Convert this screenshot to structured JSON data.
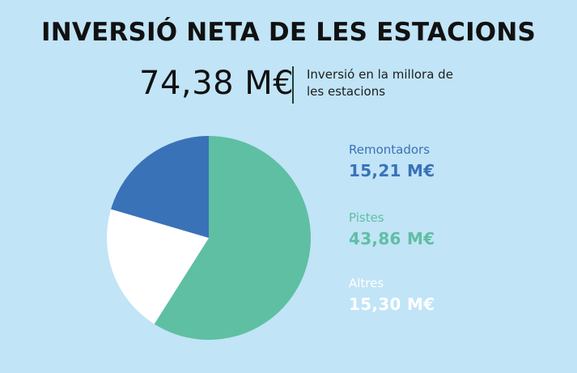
{
  "header": {
    "title": "INVERSIÓ NETA DE LES ESTACIONS",
    "total": "74,38 M€",
    "subtitle": "Inversió en la millora de les estacions"
  },
  "colors": {
    "background": "#c1e4f7",
    "remuntadors": "#3a72b8",
    "pistes": "#5fbfa3",
    "altres": "#ffffff"
  },
  "chart_data": {
    "type": "pie",
    "title": "INVERSIÓ NETA DE LES ESTACIONS",
    "unit": "M€",
    "total": 74.38,
    "slices": [
      {
        "name": "Remontadors",
        "value": 15.21,
        "label": "15,21 M€",
        "color": "#3a72b8"
      },
      {
        "name": "Pistes",
        "value": 43.86,
        "label": "43,86 M€",
        "color": "#5fbfa3"
      },
      {
        "name": "Altres",
        "value": 15.3,
        "label": "15,30 M€",
        "color": "#ffffff"
      }
    ],
    "legend_position": "right"
  }
}
